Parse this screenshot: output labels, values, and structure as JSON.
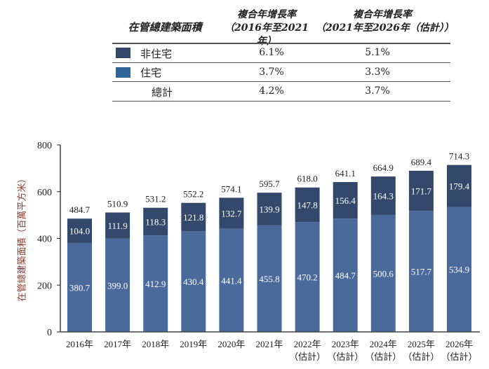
{
  "table": {
    "title": "在管總建築面積",
    "col1_line1": "複合年增長率",
    "col1_line2": "（2016年至2021年）",
    "col2_line1": "複合年增長率",
    "col2_line2": "（2021年至2026年（估計））",
    "rows": [
      {
        "label": "非住宅",
        "v1": "6.1%",
        "v2": "5.1%",
        "color": "#34486b"
      },
      {
        "label": "住宅",
        "v1": "3.7%",
        "v2": "3.3%",
        "color": "#2f6699"
      },
      {
        "label": "總計",
        "v1": "4.2%",
        "v2": "3.7%"
      }
    ]
  },
  "chart_data": {
    "type": "bar",
    "stacked": true,
    "ylabel": "在管總建築面積（百萬平方米）",
    "ylim": [
      0,
      800
    ],
    "yticks": [
      "0",
      "200",
      "400",
      "600",
      "800"
    ],
    "categories": [
      "2016年",
      "2017年",
      "2018年",
      "2019年",
      "2020年",
      "2021年",
      "2022年",
      "2023年",
      "2024年",
      "2025年",
      "2026年"
    ],
    "category_sublabels": [
      "",
      "",
      "",
      "",
      "",
      "",
      "（估計）",
      "（估計）",
      "（估計）",
      "（估計）",
      "（估計）"
    ],
    "series": [
      {
        "name": "住宅",
        "color": "#4a6a9c",
        "values": [
          380.7,
          399.0,
          412.9,
          430.4,
          441.4,
          455.8,
          470.2,
          484.7,
          500.6,
          517.7,
          534.9
        ]
      },
      {
        "name": "非住宅",
        "color": "#34486b",
        "values": [
          104.0,
          111.9,
          118.3,
          121.8,
          132.7,
          139.9,
          147.8,
          156.4,
          164.3,
          171.7,
          179.4
        ]
      }
    ],
    "totals": [
      484.7,
      510.9,
      531.2,
      552.2,
      574.1,
      595.7,
      618.0,
      641.1,
      664.9,
      689.4,
      714.3
    ]
  }
}
